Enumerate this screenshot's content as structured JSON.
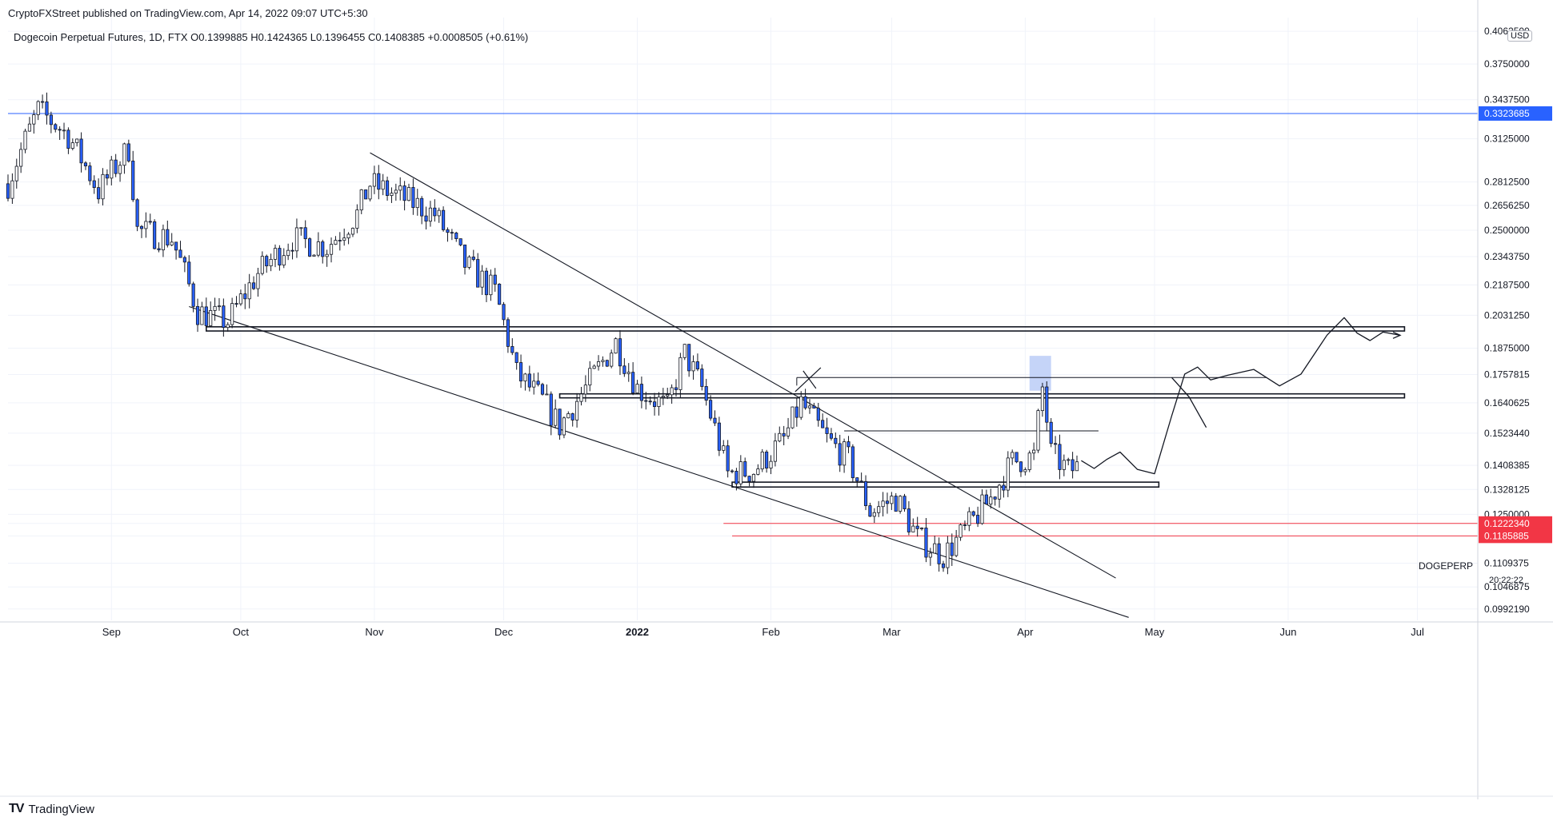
{
  "header": {
    "published": "CryptoFXStreet published on TradingView.com, Apr 14, 2022 09:07 UTC+5:30",
    "ohlc": "Dogecoin Perpetual Futures, 1D, FTX  O0.1399885  H0.1424365  L0.1396455  C0.1408385  +0.0008505 (+0.61%)"
  },
  "footer": {
    "brand": "TradingView",
    "logo": "TV"
  },
  "right_axis": {
    "currency": "USD",
    "symbol": "DOGEPERP",
    "countdown": "20:22:22"
  },
  "colors": {
    "up": "#ffffff",
    "down": "#2962ff",
    "wick": "#131722",
    "resistance_line": "#2962ff",
    "support_lines": "#f23645",
    "trendline": "#131722",
    "highlight": "#bbcdf7"
  },
  "chart_data": {
    "type": "candlestick",
    "title": "Dogecoin Perpetual Futures, 1D, FTX",
    "ylabel": "USD",
    "y_scale": "log",
    "ylim": [
      0.0965,
      0.42
    ],
    "y_ticks": [
      "0.0992190",
      "0.1046875",
      "0.1109375",
      "0.1185885",
      "0.1222340",
      "0.1250000",
      "0.1328125",
      "0.1408385",
      "0.1523440",
      "0.1640625",
      "0.1757815",
      "0.1875000",
      "0.2031250",
      "0.2187500",
      "0.2343750",
      "0.2500000",
      "0.2656250",
      "0.2812500",
      "0.3125000",
      "0.3323685",
      "0.3437500",
      "0.3750000",
      "0.4062500"
    ],
    "x_ticks": [
      {
        "label": "Sep",
        "date": "2021-09-01"
      },
      {
        "label": "Oct",
        "date": "2021-10-01"
      },
      {
        "label": "Nov",
        "date": "2021-11-01"
      },
      {
        "label": "Dec",
        "date": "2021-12-01"
      },
      {
        "label": "2022",
        "date": "2022-01-01"
      },
      {
        "label": "Feb",
        "date": "2022-02-01"
      },
      {
        "label": "Mar",
        "date": "2022-03-01"
      },
      {
        "label": "Apr",
        "date": "2022-04-01"
      },
      {
        "label": "May",
        "date": "2022-05-01"
      },
      {
        "label": "Jun",
        "date": "2022-06-01"
      },
      {
        "label": "Jul",
        "date": "2022-07-01"
      }
    ],
    "x_range": [
      "2021-08-08",
      "2022-07-15"
    ],
    "price_labels": [
      {
        "value": 0.3323685,
        "text": "0.3323685",
        "color": "#2962ff"
      },
      {
        "value": 0.122234,
        "text": "0.1222340",
        "color": "#f23645"
      },
      {
        "value": 0.1185885,
        "text": "0.1185885",
        "color": "#f23645"
      },
      {
        "value": 0.1408385,
        "text": "0.1408385",
        "color": "#ffffff"
      }
    ],
    "horizontal_lines": [
      {
        "value": 0.3323685,
        "from": "2021-08-08",
        "to": "2022-07-15",
        "color": "#2962ff"
      },
      {
        "value": 0.122234,
        "from": "2022-01-21",
        "to": "2022-07-15",
        "color": "#f23645"
      },
      {
        "value": 0.1185885,
        "from": "2022-01-23",
        "to": "2022-07-15",
        "color": "#f23645"
      }
    ],
    "zones": [
      {
        "from": "2021-09-23",
        "to": "2022-06-28",
        "low": 0.1955,
        "high": 0.1975
      },
      {
        "from": "2021-12-14",
        "to": "2022-06-28",
        "low": 0.1662,
        "high": 0.1677
      },
      {
        "from": "2022-01-23",
        "to": "2022-05-02",
        "low": 0.1336,
        "high": 0.1352
      }
    ],
    "target_lines": [
      {
        "value": 0.1745,
        "from": "2022-02-07",
        "to": "2022-05-27"
      },
      {
        "value": 0.1532,
        "from": "2022-02-18",
        "to": "2022-04-18"
      }
    ],
    "trendlines": [
      {
        "p1": [
          "2021-09-19",
          0.2075
        ],
        "p2": [
          "2022-04-25",
          0.0972
        ]
      },
      {
        "p1": [
          "2021-10-31",
          0.302
        ],
        "p2": [
          "2022-04-22",
          0.107
        ]
      }
    ],
    "highlight_box": {
      "from": "2022-04-02",
      "to": "2022-04-07",
      "low": 0.169,
      "high": 0.184
    },
    "x_mark": {
      "date": "2022-02-07",
      "value": 0.176
    },
    "projection": [
      [
        "2022-04-14",
        0.1425
      ],
      [
        "2022-04-17",
        0.1398
      ],
      [
        "2022-04-20",
        0.143
      ],
      [
        "2022-04-23",
        0.1455
      ],
      [
        "2022-04-27",
        0.1395
      ],
      [
        "2022-05-01",
        0.138
      ],
      [
        "2022-05-05",
        0.159
      ],
      [
        "2022-05-08",
        0.176
      ],
      [
        "2022-05-11",
        0.179
      ],
      [
        "2022-05-14",
        0.1735
      ],
      [
        "2022-05-18",
        0.1755
      ],
      [
        "2022-05-24",
        0.178
      ],
      [
        "2022-05-30",
        0.171
      ],
      [
        "2022-06-04",
        0.176
      ],
      [
        "2022-06-10",
        0.1935
      ],
      [
        "2022-06-14",
        0.202
      ],
      [
        "2022-06-17",
        0.1945
      ],
      [
        "2022-06-20",
        0.191
      ],
      [
        "2022-06-23",
        0.195
      ],
      [
        "2022-06-27",
        0.1935
      ]
    ],
    "projection_alt": [
      [
        "2022-05-05",
        0.1745
      ],
      [
        "2022-05-09",
        0.1665
      ],
      [
        "2022-05-13",
        0.1545
      ]
    ],
    "anchors": [
      {
        "date": "2021-08-08",
        "close": 0.28
      },
      {
        "date": "2021-08-15",
        "close": 0.335
      },
      {
        "date": "2021-08-22",
        "close": 0.315
      },
      {
        "date": "2021-08-29",
        "close": 0.275
      },
      {
        "date": "2021-09-05",
        "close": 0.305
      },
      {
        "date": "2021-09-07",
        "close": 0.25
      },
      {
        "date": "2021-09-15",
        "close": 0.245
      },
      {
        "date": "2021-09-21",
        "close": 0.205
      },
      {
        "date": "2021-09-28",
        "close": 0.2
      },
      {
        "date": "2021-10-05",
        "close": 0.225
      },
      {
        "date": "2021-10-13",
        "close": 0.245
      },
      {
        "date": "2021-10-21",
        "close": 0.24
      },
      {
        "date": "2021-10-28",
        "close": 0.26
      },
      {
        "date": "2021-10-31",
        "close": 0.28
      },
      {
        "date": "2021-11-08",
        "close": 0.27
      },
      {
        "date": "2021-11-15",
        "close": 0.26
      },
      {
        "date": "2021-11-22",
        "close": 0.23
      },
      {
        "date": "2021-11-29",
        "close": 0.215
      },
      {
        "date": "2021-12-04",
        "close": 0.176
      },
      {
        "date": "2021-12-10",
        "close": 0.165
      },
      {
        "date": "2021-12-14",
        "close": 0.155
      },
      {
        "date": "2021-12-20",
        "close": 0.17
      },
      {
        "date": "2021-12-27",
        "close": 0.19
      },
      {
        "date": "2022-01-01",
        "close": 0.17
      },
      {
        "date": "2022-01-08",
        "close": 0.162
      },
      {
        "date": "2022-01-12",
        "close": 0.185
      },
      {
        "date": "2022-01-16",
        "close": 0.17
      },
      {
        "date": "2022-01-22",
        "close": 0.138
      },
      {
        "date": "2022-01-28",
        "close": 0.139
      },
      {
        "date": "2022-02-04",
        "close": 0.15
      },
      {
        "date": "2022-02-08",
        "close": 0.164
      },
      {
        "date": "2022-02-14",
        "close": 0.15
      },
      {
        "date": "2022-02-19",
        "close": 0.143
      },
      {
        "date": "2022-02-24",
        "close": 0.126
      },
      {
        "date": "2022-03-02",
        "close": 0.13
      },
      {
        "date": "2022-03-07",
        "close": 0.118
      },
      {
        "date": "2022-03-13",
        "close": 0.113
      },
      {
        "date": "2022-03-18",
        "close": 0.12
      },
      {
        "date": "2022-03-24",
        "close": 0.13
      },
      {
        "date": "2022-03-29",
        "close": 0.142
      },
      {
        "date": "2022-04-03",
        "close": 0.144
      },
      {
        "date": "2022-04-05",
        "close": 0.17
      },
      {
        "date": "2022-04-07",
        "close": 0.145
      },
      {
        "date": "2022-04-11",
        "close": 0.139
      },
      {
        "date": "2022-04-14",
        "close": 0.1408
      }
    ]
  }
}
